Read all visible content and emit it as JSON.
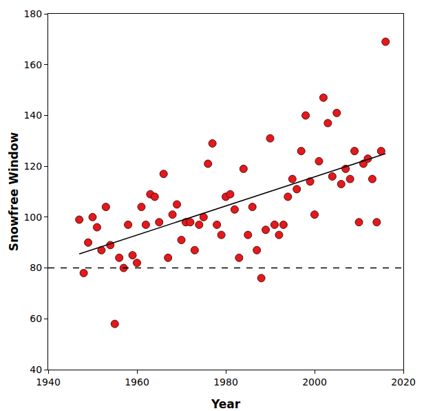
{
  "chart_data": {
    "type": "scatter",
    "x_label": "Year",
    "y_label": "Snowfree Window",
    "xlim": [
      1940,
      2020
    ],
    "xticks": [
      1940,
      1960,
      1980,
      2000,
      2020
    ],
    "ylim": [
      40,
      180
    ],
    "yticks": [
      40,
      60,
      80,
      100,
      120,
      140,
      160,
      180
    ],
    "grid": false,
    "series": [
      {
        "type": "scatter",
        "color": "#e3191c",
        "marker": "circle",
        "x": [
          1947,
          1948,
          1949,
          1950,
          1951,
          1952,
          1953,
          1954,
          1955,
          1956,
          1957,
          1958,
          1959,
          1960,
          1961,
          1962,
          1963,
          1964,
          1965,
          1966,
          1967,
          1968,
          1969,
          1970,
          1971,
          1972,
          1973,
          1974,
          1975,
          1976,
          1977,
          1978,
          1979,
          1980,
          1981,
          1982,
          1983,
          1984,
          1985,
          1986,
          1987,
          1988,
          1989,
          1990,
          1991,
          1992,
          1993,
          1994,
          1995,
          1996,
          1997,
          1998,
          1999,
          2000,
          2001,
          2002,
          2003,
          2004,
          2005,
          2006,
          2007,
          2008,
          2009,
          2010,
          2011,
          2012,
          2013,
          2014,
          2015,
          2016
        ],
        "values": [
          99,
          78,
          90,
          100,
          96,
          87,
          104,
          89,
          58,
          84,
          80,
          97,
          85,
          82,
          104,
          97,
          109,
          108,
          98,
          117,
          84,
          101,
          105,
          91,
          98,
          98,
          87,
          97,
          100,
          121,
          129,
          97,
          93,
          108,
          109,
          103,
          84,
          119,
          93,
          104,
          87,
          76,
          95,
          131,
          97,
          93,
          97,
          108,
          115,
          111,
          126,
          140,
          114,
          101,
          122,
          147,
          137,
          116,
          141,
          113,
          119,
          115,
          126,
          98,
          121,
          123,
          115,
          98,
          126,
          169
        ]
      },
      {
        "type": "line",
        "color": "#000000",
        "line_style": "solid",
        "x": [
          1947,
          2016
        ],
        "values": [
          85.5,
          125
        ]
      },
      {
        "type": "line",
        "color": "#000000",
        "line_style": "dashed",
        "x": [
          1940,
          2020
        ],
        "values": [
          80,
          80
        ]
      }
    ]
  }
}
